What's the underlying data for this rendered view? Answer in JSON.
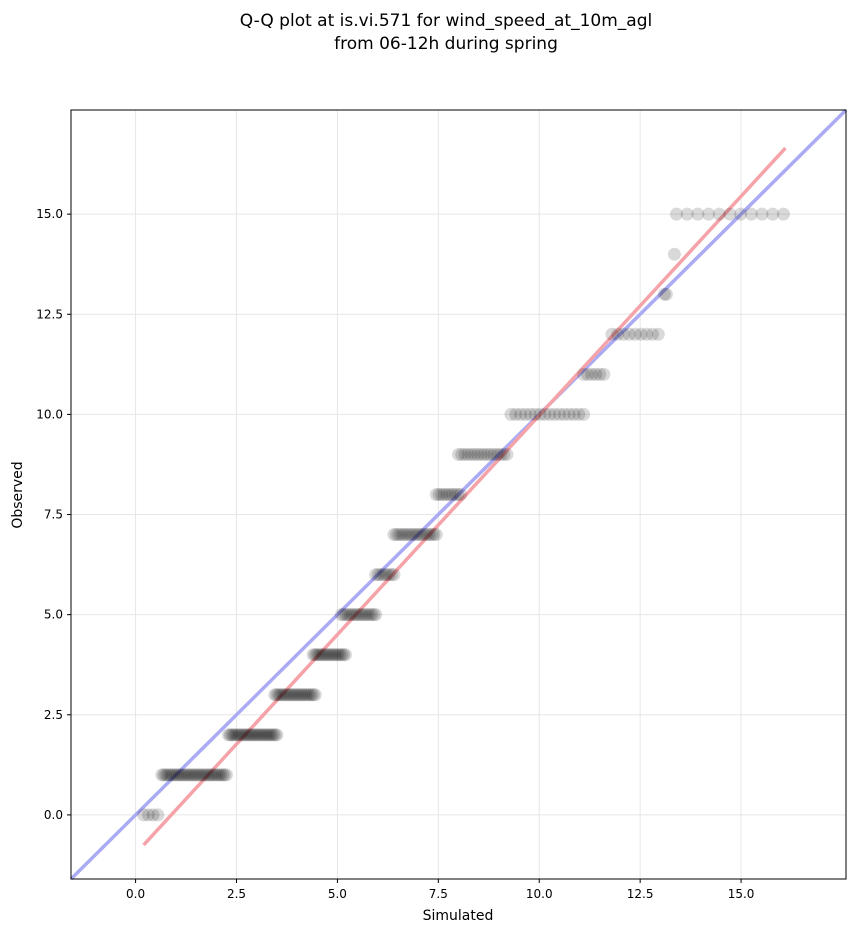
{
  "chart_data": {
    "type": "scatter",
    "title_line1": "Q-Q plot at is.vi.571 for wind_speed_at_10m_agl",
    "title_line2": "from 06-12h during spring",
    "xlabel": "Simulated",
    "ylabel": "Observed",
    "xlim": [
      -1.6,
      17.6
    ],
    "ylim": [
      -1.6,
      17.6
    ],
    "x_ticks": [
      0.0,
      2.5,
      5.0,
      7.5,
      10.0,
      12.5,
      15.0
    ],
    "y_ticks": [
      0.0,
      2.5,
      5.0,
      7.5,
      10.0,
      12.5,
      15.0
    ],
    "x_tick_labels": [
      "0.0",
      "2.5",
      "5.0",
      "7.5",
      "10.0",
      "12.5",
      "15.0"
    ],
    "y_tick_labels": [
      "0.0",
      "2.5",
      "5.0",
      "7.5",
      "10.0",
      "12.5",
      "15.0"
    ],
    "grid": true,
    "point_color": "#000000",
    "lines": [
      {
        "color": "#aaaaf5",
        "x": [
          -1.6,
          17.6
        ],
        "y": [
          -1.6,
          17.6
        ]
      },
      {
        "color": "#f5a3a8",
        "x": [
          0.2,
          16.1
        ],
        "y": [
          -0.75,
          16.65
        ]
      }
    ],
    "point_groups": [
      {
        "y": 0,
        "x_start": 0.2,
        "x_end": 0.55,
        "n": 4
      },
      {
        "y": 1,
        "x_start": 0.65,
        "x_end": 2.25,
        "n": 34
      },
      {
        "y": 2,
        "x_start": 2.3,
        "x_end": 3.5,
        "n": 28
      },
      {
        "y": 3,
        "x_start": 3.45,
        "x_end": 4.45,
        "n": 22
      },
      {
        "y": 4,
        "x_start": 4.4,
        "x_end": 5.2,
        "n": 18
      },
      {
        "y": 5,
        "x_start": 5.1,
        "x_end": 5.95,
        "n": 16
      },
      {
        "y": 6,
        "x_start": 5.95,
        "x_end": 6.4,
        "n": 8
      },
      {
        "y": 7,
        "x_start": 6.4,
        "x_end": 7.45,
        "n": 18
      },
      {
        "y": 8,
        "x_start": 7.45,
        "x_end": 8.05,
        "n": 10
      },
      {
        "y": 9,
        "x_start": 8.0,
        "x_end": 9.2,
        "n": 16
      },
      {
        "y": 10,
        "x_start": 9.3,
        "x_end": 11.1,
        "n": 16
      },
      {
        "y": 11,
        "x_start": 11.1,
        "x_end": 11.6,
        "n": 6
      },
      {
        "y": 12,
        "x_start": 11.8,
        "x_end": 12.95,
        "n": 9
      },
      {
        "y": 13,
        "x_start": 13.1,
        "x_end": 13.15,
        "n": 2
      },
      {
        "y": 14,
        "x_start": 13.35,
        "x_end": 13.35,
        "n": 1
      },
      {
        "y": 15,
        "x_start": 13.4,
        "x_end": 16.05,
        "n": 11
      }
    ]
  }
}
